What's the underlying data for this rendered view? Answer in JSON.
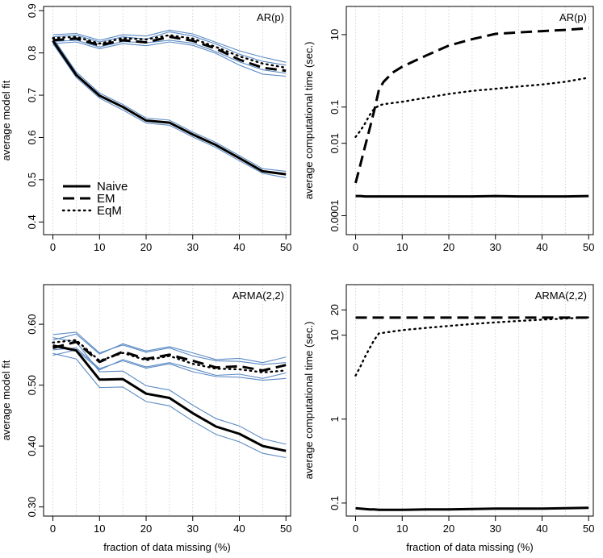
{
  "figure": {
    "layout": "2x2",
    "shared_xlabel": "fraction of data missing (%)",
    "legend_entries": [
      {
        "label": "Naive",
        "style": "solid"
      },
      {
        "label": "EM",
        "style": "dashed"
      },
      {
        "label": "EqM",
        "style": "dotted"
      }
    ]
  },
  "chart_data": [
    {
      "type": "line",
      "panel": "top-left",
      "title": "AR(p)",
      "xlabel": "",
      "ylabel": "average model fit",
      "xlim": [
        -2,
        51
      ],
      "ylim": [
        0.37,
        0.91
      ],
      "xticks": [
        0,
        10,
        20,
        30,
        40,
        50
      ],
      "yticks": [
        0.4,
        0.5,
        0.6,
        0.7,
        0.8,
        0.9
      ],
      "ytick_labels": [
        "0.4",
        "0.5",
        "0.6",
        "0.7",
        "0.8",
        "0.9"
      ],
      "gridlines": "vertical-dotted",
      "legend_position": "bottom-left",
      "x": [
        0,
        5,
        10,
        15,
        20,
        25,
        30,
        35,
        40,
        45,
        50
      ],
      "band_color": "#5b8ac4",
      "series": [
        {
          "name": "Naive",
          "style": "solid",
          "values": [
            0.829,
            0.748,
            0.699,
            0.672,
            0.64,
            0.635,
            0.607,
            0.582,
            0.551,
            0.52,
            0.513
          ],
          "ci_lower": [
            0.822,
            0.742,
            0.693,
            0.665,
            0.634,
            0.629,
            0.601,
            0.576,
            0.545,
            0.515,
            0.505
          ],
          "ci_upper": [
            0.836,
            0.755,
            0.705,
            0.678,
            0.646,
            0.641,
            0.613,
            0.588,
            0.557,
            0.526,
            0.52
          ]
        },
        {
          "name": "EM",
          "style": "dashed",
          "values": [
            0.83,
            0.834,
            0.818,
            0.83,
            0.825,
            0.838,
            0.829,
            0.81,
            0.784,
            0.765,
            0.758
          ],
          "ci_lower": [
            0.822,
            0.826,
            0.81,
            0.822,
            0.817,
            0.826,
            0.818,
            0.799,
            0.771,
            0.75,
            0.745
          ],
          "ci_upper": [
            0.838,
            0.842,
            0.826,
            0.838,
            0.833,
            0.85,
            0.84,
            0.821,
            0.797,
            0.78,
            0.771
          ]
        },
        {
          "name": "EqM",
          "style": "dotted",
          "values": [
            0.835,
            0.838,
            0.822,
            0.835,
            0.832,
            0.842,
            0.834,
            0.814,
            0.792,
            0.775,
            0.765
          ],
          "ci_lower": [
            0.827,
            0.83,
            0.814,
            0.827,
            0.824,
            0.83,
            0.823,
            0.803,
            0.779,
            0.76,
            0.752
          ],
          "ci_upper": [
            0.843,
            0.846,
            0.83,
            0.843,
            0.84,
            0.854,
            0.845,
            0.825,
            0.805,
            0.79,
            0.778
          ]
        }
      ]
    },
    {
      "type": "line",
      "panel": "top-right",
      "title": "AR(p)",
      "xlabel": "",
      "ylabel": "average computational time (sec.)",
      "yscale": "log10",
      "xlim": [
        -2,
        51
      ],
      "ylim": [
        3e-05,
        60
      ],
      "xticks": [
        0,
        10,
        20,
        30,
        40,
        50
      ],
      "yticks": [
        0.0001,
        0.01,
        0.1,
        10
      ],
      "ytick_labels": [
        "0.0001",
        "0.01",
        "0.1",
        "10"
      ],
      "gridlines": "vertical-dotted",
      "x": [
        0,
        1,
        2,
        3,
        4,
        5,
        6,
        8,
        10,
        15,
        20,
        25,
        30,
        35,
        40,
        45,
        50
      ],
      "series": [
        {
          "name": "Naive",
          "style": "solid",
          "values": [
            0.00035,
            0.00035,
            0.00034,
            0.00034,
            0.00034,
            0.00034,
            0.00034,
            0.00034,
            0.00034,
            0.00034,
            0.00034,
            0.00034,
            0.00035,
            0.00034,
            0.00034,
            0.00034,
            0.00035
          ]
        },
        {
          "name": "EM",
          "style": "dashed",
          "values": [
            0.0008,
            0.0025,
            0.008,
            0.025,
            0.08,
            0.3,
            0.5,
            0.9,
            1.3,
            2.6,
            5,
            7.5,
            10.5,
            11.5,
            12.5,
            13.5,
            15
          ]
        },
        {
          "name": "EqM",
          "style": "dotted",
          "values": [
            0.015,
            0.022,
            0.035,
            0.06,
            0.09,
            0.11,
            0.12,
            0.13,
            0.14,
            0.18,
            0.23,
            0.28,
            0.32,
            0.37,
            0.42,
            0.5,
            0.65
          ]
        }
      ]
    },
    {
      "type": "line",
      "panel": "bottom-left",
      "title": "ARMA(2,2)",
      "xlabel": "fraction of data missing (%)",
      "ylabel": "average model fit",
      "xlim": [
        -2,
        51
      ],
      "ylim": [
        0.285,
        0.665
      ],
      "xticks": [
        0,
        10,
        20,
        30,
        40,
        50
      ],
      "yticks": [
        0.3,
        0.4,
        0.5,
        0.6
      ],
      "ytick_labels": [
        "0.30",
        "0.40",
        "0.50",
        "0.60"
      ],
      "gridlines": "vertical-dotted",
      "x": [
        0,
        5,
        10,
        15,
        20,
        25,
        30,
        35,
        40,
        45,
        50
      ],
      "band_color": "#5b8ac4",
      "series": [
        {
          "name": "Naive",
          "style": "solid",
          "values": [
            0.565,
            0.557,
            0.509,
            0.51,
            0.486,
            0.479,
            0.454,
            0.432,
            0.42,
            0.4,
            0.392
          ],
          "ci_lower": [
            0.552,
            0.543,
            0.496,
            0.497,
            0.473,
            0.466,
            0.441,
            0.419,
            0.407,
            0.388,
            0.381
          ],
          "ci_upper": [
            0.578,
            0.571,
            0.522,
            0.523,
            0.499,
            0.492,
            0.467,
            0.445,
            0.433,
            0.412,
            0.403
          ]
        },
        {
          "name": "EM",
          "style": "dashed",
          "values": [
            0.561,
            0.571,
            0.538,
            0.555,
            0.543,
            0.55,
            0.54,
            0.529,
            0.531,
            0.524,
            0.533
          ],
          "ci_lower": [
            0.549,
            0.558,
            0.525,
            0.542,
            0.53,
            0.537,
            0.527,
            0.516,
            0.518,
            0.511,
            0.52
          ],
          "ci_upper": [
            0.574,
            0.584,
            0.551,
            0.568,
            0.556,
            0.563,
            0.553,
            0.542,
            0.544,
            0.537,
            0.546
          ]
        },
        {
          "name": "EqM",
          "style": "dotted",
          "values": [
            0.57,
            0.574,
            0.54,
            0.553,
            0.541,
            0.548,
            0.535,
            0.527,
            0.526,
            0.521,
            0.524
          ],
          "ci_lower": [
            0.558,
            0.561,
            0.527,
            0.54,
            0.528,
            0.535,
            0.522,
            0.514,
            0.513,
            0.508,
            0.511
          ],
          "ci_upper": [
            0.583,
            0.587,
            0.553,
            0.566,
            0.554,
            0.561,
            0.548,
            0.54,
            0.539,
            0.534,
            0.537
          ]
        }
      ]
    },
    {
      "type": "line",
      "panel": "bottom-right",
      "title": "ARMA(2,2)",
      "xlabel": "fraction of data missing (%)",
      "ylabel": "average computational time (sec.)",
      "yscale": "log10",
      "xlim": [
        -2,
        51
      ],
      "ylim": [
        0.07,
        40
      ],
      "xticks": [
        0,
        10,
        20,
        30,
        40,
        50
      ],
      "yticks": [
        0.1,
        1,
        10,
        20
      ],
      "ytick_labels": [
        "0.1",
        "1",
        "10",
        "20"
      ],
      "gridlines": "vertical-dotted",
      "x": [
        0,
        1,
        2,
        3,
        4,
        5,
        10,
        15,
        20,
        25,
        30,
        35,
        40,
        45,
        50
      ],
      "series": [
        {
          "name": "Naive",
          "style": "solid",
          "values": [
            0.087,
            0.086,
            0.085,
            0.084,
            0.084,
            0.083,
            0.083,
            0.084,
            0.084,
            0.085,
            0.086,
            0.086,
            0.086,
            0.087,
            0.088
          ]
        },
        {
          "name": "EM",
          "style": "dashed",
          "values": [
            16.2,
            16.2,
            16.2,
            16.2,
            16.2,
            16.2,
            16.2,
            16.2,
            16.2,
            16.2,
            16.2,
            16.2,
            16.2,
            16.2,
            16.2
          ]
        },
        {
          "name": "EqM",
          "style": "dotted",
          "values": [
            3.3,
            4.2,
            5.5,
            7.0,
            8.8,
            10.5,
            11.5,
            12.2,
            12.9,
            13.6,
            14.2,
            14.8,
            15.3,
            15.8,
            16.3
          ]
        }
      ]
    }
  ]
}
